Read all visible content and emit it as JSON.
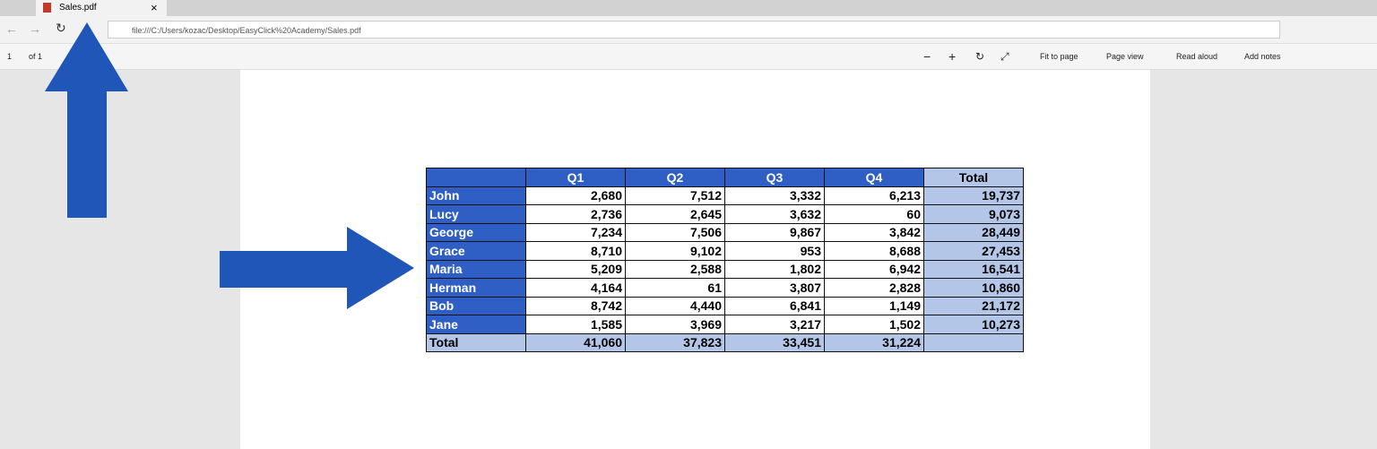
{
  "browser": {
    "tab_title": "Sales.pdf",
    "url": "file:///C:/Users/kozac/Desktop/EasyClick%20Academy/Sales.pdf"
  },
  "pdf_toolbar": {
    "page": "1",
    "page_count": "of 1",
    "fit_to_page": "Fit to page",
    "page_view": "Page view",
    "read_aloud": "Read aloud",
    "add_notes": "Add notes"
  },
  "table": {
    "columns": [
      "Q1",
      "Q2",
      "Q3",
      "Q4",
      "Total"
    ],
    "rows": [
      {
        "name": "John",
        "cells": [
          "2,680",
          "7,512",
          "3,332",
          "6,213",
          "19,737"
        ]
      },
      {
        "name": "Lucy",
        "cells": [
          "2,736",
          "2,645",
          "3,632",
          "60",
          "9,073"
        ]
      },
      {
        "name": "George",
        "cells": [
          "7,234",
          "7,506",
          "9,867",
          "3,842",
          "28,449"
        ]
      },
      {
        "name": "Grace",
        "cells": [
          "8,710",
          "9,102",
          "953",
          "8,688",
          "27,453"
        ]
      },
      {
        "name": "Maria",
        "cells": [
          "5,209",
          "2,588",
          "1,802",
          "6,942",
          "16,541"
        ]
      },
      {
        "name": "Herman",
        "cells": [
          "4,164",
          "61",
          "3,807",
          "2,828",
          "10,860"
        ]
      },
      {
        "name": "Bob",
        "cells": [
          "8,742",
          "4,440",
          "6,841",
          "1,149",
          "21,172"
        ]
      },
      {
        "name": "Jane",
        "cells": [
          "1,585",
          "3,969",
          "3,217",
          "1,502",
          "10,273"
        ]
      }
    ],
    "total_row": {
      "label": "Total",
      "cells": [
        "41,060",
        "37,823",
        "33,451",
        "31,224"
      ]
    }
  }
}
